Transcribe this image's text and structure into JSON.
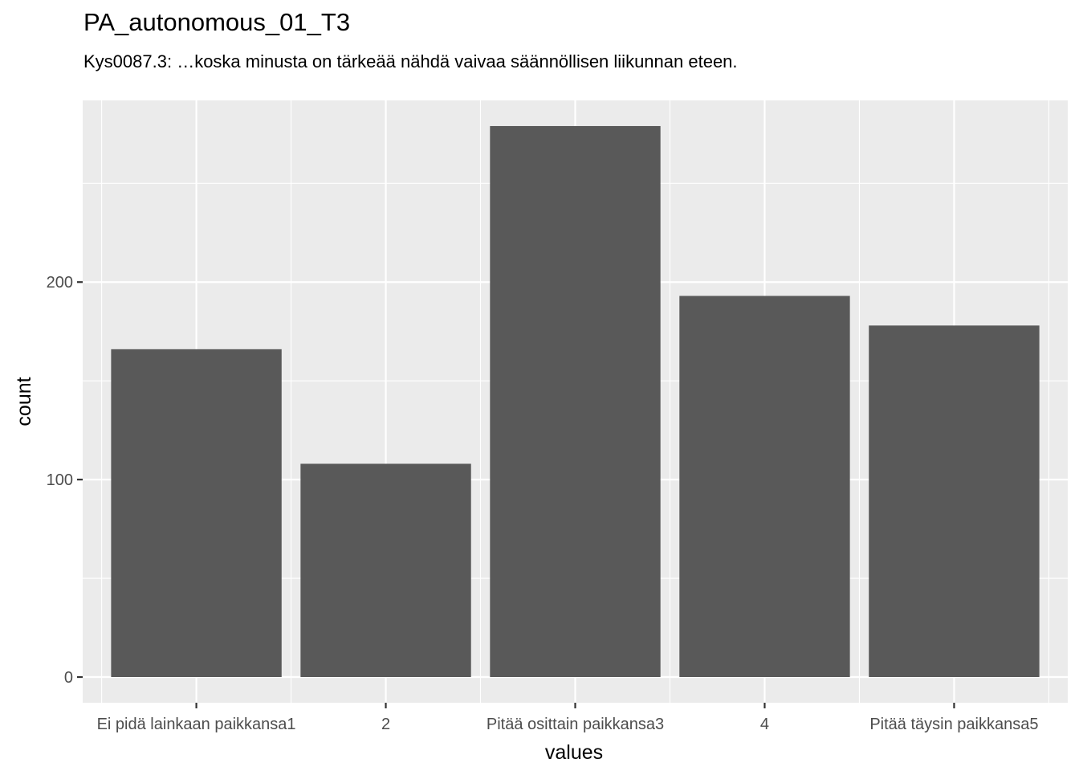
{
  "chart_data": {
    "type": "bar",
    "title": "PA_autonomous_01_T3",
    "subtitle": "Kys0087.3: …koska minusta on tärkeää nähdä vaivaa säännöllisen liikunnan eteen.",
    "xlabel": "values",
    "ylabel": "count",
    "categories": [
      "Ei pidä lainkaan paikkansa1",
      "2",
      "Pitää osittain paikkansa3",
      "4",
      "Pitää täysin paikkansa5"
    ],
    "values": [
      166,
      108,
      279,
      193,
      178
    ],
    "ylim": [
      -13,
      292
    ],
    "yticks": [
      0,
      100,
      200
    ],
    "grid": true,
    "legend": "none",
    "colors": {
      "bar": "#595959",
      "panel": "#ebebeb",
      "grid": "#ffffff",
      "tick_text": "#4d4d4d",
      "tick_mark": "#333333"
    }
  }
}
